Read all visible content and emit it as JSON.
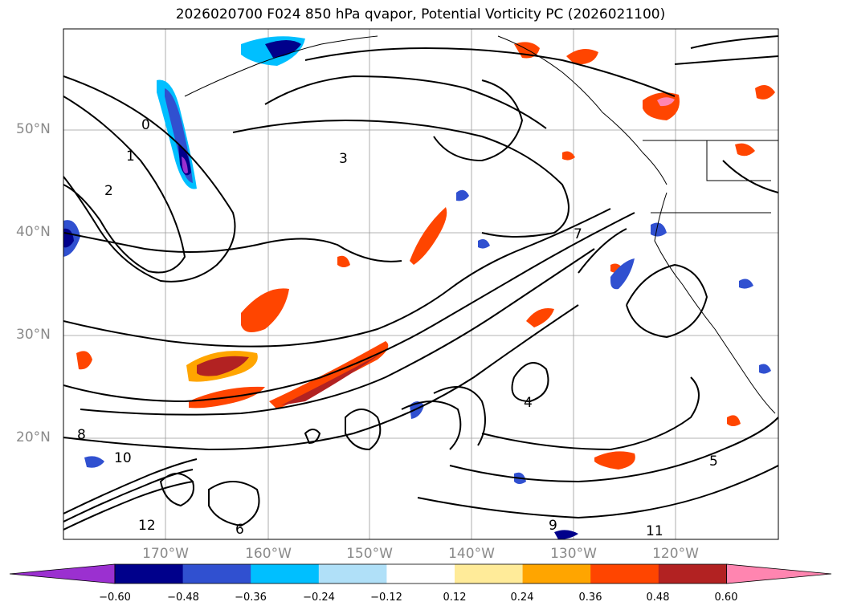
{
  "title": "2026020700 F024 850 hPa qvapor, Potential Vorticity PC (2026021100)",
  "lat_labels": [
    "50°N",
    "40°N",
    "30°N",
    "20°N"
  ],
  "lon_labels": [
    "170°W",
    "160°W",
    "150°W",
    "140°W",
    "130°W",
    "120°W"
  ],
  "colorbar": {
    "ticks": [
      "−0.60",
      "−0.48",
      "−0.36",
      "−0.24",
      "−0.12",
      "0.12",
      "0.24",
      "0.36",
      "0.48",
      "0.60"
    ],
    "colors": [
      "#9b30d0",
      "#00008b",
      "#3050d0",
      "#00bfff",
      "#b0e0f8",
      "#ffffff",
      "#ffeb99",
      "#ffa500",
      "#ff4500",
      "#b22222",
      "#ff85b0"
    ],
    "extend": "both"
  },
  "contour_labels": [
    "0",
    "1",
    "2",
    "3",
    "4",
    "5",
    "6",
    "7",
    "8",
    "9",
    "10",
    "11",
    "12"
  ]
}
